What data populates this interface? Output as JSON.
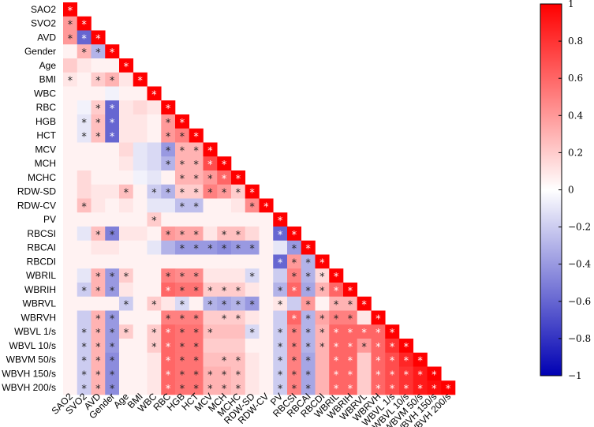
{
  "chart_data": {
    "type": "heatmap",
    "title": "",
    "variables": [
      "SAO2",
      "SVO2",
      "AVD",
      "Gender",
      "Age",
      "BMI",
      "WBC",
      "RBC",
      "HGB",
      "HCT",
      "MCV",
      "MCH",
      "MCHC",
      "RDW-SD",
      "RDW-CV",
      "PV",
      "RBCSI",
      "RBCAI",
      "RBCDI",
      "WBRIL",
      "WBRIH",
      "WBRVL",
      "WBRVH",
      "WBVL 1/s",
      "WBVL 10/s",
      "WBVM 50/s",
      "WBVH 150/s",
      "WBVH 200/s"
    ],
    "matrix_layout": "lower-triangle",
    "significance_marker": "*",
    "colorbar": {
      "range": [
        -1,
        1
      ],
      "ticks": [
        1,
        0.8,
        0.6,
        0.4,
        0.2,
        0,
        -0.2,
        -0.4,
        -0.6,
        -0.8,
        -1
      ],
      "tick_labels": [
        "1",
        "0.8",
        "0.6",
        "0.4",
        "0.2",
        "0",
        "−0.2",
        "−0.4",
        "−0.6",
        "−0.8",
        "−1"
      ],
      "color_negative": "#0000b3",
      "color_zero": "#ffffff",
      "color_positive": "#ff0000"
    },
    "rows": [
      {
        "v": [
          1
        ],
        "s": [
          1
        ]
      },
      {
        "v": [
          0.4,
          1
        ],
        "s": [
          1,
          1
        ]
      },
      {
        "v": [
          0.4,
          -0.6,
          1
        ],
        "s": [
          1,
          1,
          1
        ]
      },
      {
        "v": [
          0.05,
          0.3,
          -0.3,
          1
        ],
        "s": [
          0,
          1,
          1,
          1
        ]
      },
      {
        "v": [
          0.2,
          0.1,
          0.05,
          0.05,
          1
        ],
        "s": [
          0,
          0,
          0,
          0,
          1
        ]
      },
      {
        "v": [
          0.1,
          0.05,
          0.2,
          0.3,
          0.1,
          1
        ],
        "s": [
          1,
          0,
          1,
          1,
          0,
          1
        ]
      },
      {
        "v": [
          0.05,
          0.05,
          0.05,
          -0.05,
          0.05,
          0.05,
          1
        ],
        "s": [
          0,
          0,
          0,
          0,
          0,
          0,
          1
        ]
      },
      {
        "v": [
          0.05,
          -0.05,
          0.2,
          -0.6,
          0.1,
          0.15,
          0.1,
          1
        ],
        "s": [
          0,
          0,
          1,
          1,
          0,
          0,
          0,
          1
        ]
      },
      {
        "v": [
          0.05,
          -0.1,
          0.25,
          -0.6,
          0.1,
          0.1,
          0.05,
          0.4,
          1
        ],
        "s": [
          0,
          1,
          1,
          1,
          0,
          0,
          0,
          1,
          1
        ]
      },
      {
        "v": [
          0.05,
          -0.1,
          0.25,
          -0.6,
          0.1,
          0.1,
          0.05,
          0.4,
          0.5,
          1
        ],
        "s": [
          0,
          1,
          1,
          1,
          0,
          0,
          0,
          1,
          1,
          1
        ]
      },
      {
        "v": [
          0.05,
          0.05,
          0.05,
          0.05,
          0.15,
          -0.1,
          -0.15,
          -0.4,
          0.3,
          0.3,
          1
        ],
        "s": [
          0,
          0,
          0,
          0,
          0,
          0,
          0,
          1,
          1,
          1,
          1
        ]
      },
      {
        "v": [
          0.05,
          0.05,
          0.05,
          0.05,
          0.1,
          -0.1,
          -0.15,
          -0.3,
          0.3,
          0.3,
          0.7,
          1
        ],
        "s": [
          0,
          0,
          0,
          0,
          0,
          0,
          0,
          1,
          1,
          1,
          1,
          1
        ]
      },
      {
        "v": [
          0.05,
          0.15,
          0.05,
          0.05,
          0.05,
          -0.05,
          -0.1,
          0.05,
          0.3,
          0.3,
          0.4,
          0.6,
          1
        ],
        "s": [
          0,
          0,
          0,
          0,
          0,
          0,
          0,
          0,
          1,
          1,
          1,
          1,
          1
        ]
      },
      {
        "v": [
          0.05,
          0.15,
          0.1,
          0.1,
          0.25,
          0.05,
          -0.2,
          -0.3,
          0.2,
          0.2,
          0.5,
          0.4,
          0.2,
          1
        ],
        "s": [
          0,
          0,
          0,
          0,
          1,
          0,
          1,
          1,
          1,
          1,
          1,
          1,
          1,
          1
        ]
      },
      {
        "v": [
          0.05,
          0.25,
          0.1,
          0.05,
          0.1,
          0.05,
          -0.1,
          -0.1,
          -0.25,
          -0.25,
          0.05,
          0.05,
          0.1,
          0.45,
          1
        ],
        "s": [
          0,
          1,
          0,
          0,
          0,
          0,
          0,
          0,
          1,
          1,
          0,
          0,
          0,
          1,
          1
        ]
      },
      {
        "v": [
          0.05,
          0.05,
          0.05,
          0.05,
          0.05,
          0.05,
          0.2,
          0.05,
          0.05,
          0.05,
          0.05,
          0.05,
          0.05,
          0.05,
          0.05,
          1
        ],
        "s": [
          0,
          0,
          0,
          0,
          0,
          0,
          1,
          0,
          0,
          0,
          0,
          0,
          0,
          0,
          0,
          1
        ]
      },
      {
        "v": [
          0.05,
          -0.1,
          0.25,
          -0.5,
          0.1,
          0.1,
          0.05,
          0.4,
          0.35,
          0.35,
          0.1,
          0.25,
          0.25,
          0.15,
          0.05,
          -0.6,
          1
        ],
        "s": [
          0,
          0,
          1,
          1,
          0,
          0,
          0,
          1,
          1,
          1,
          0,
          1,
          1,
          0,
          0,
          1,
          1
        ]
      },
      {
        "v": [
          0.05,
          0.05,
          0.1,
          0.1,
          0.05,
          0.05,
          -0.1,
          -0.3,
          -0.4,
          -0.4,
          -0.4,
          -0.45,
          -0.4,
          -0.4,
          0.05,
          -0.1,
          -0.4,
          1
        ],
        "s": [
          0,
          0,
          0,
          0,
          0,
          0,
          0,
          0,
          1,
          1,
          1,
          1,
          1,
          1,
          0,
          0,
          1,
          1
        ]
      },
      {
        "v": [
          0.05,
          0.05,
          0.05,
          0.05,
          0.05,
          0.05,
          0.05,
          0.05,
          0.05,
          0.05,
          0.05,
          0.05,
          0.05,
          0.05,
          0.05,
          -0.6,
          0.4,
          -0.3,
          1
        ],
        "s": [
          0,
          0,
          0,
          0,
          0,
          0,
          0,
          0,
          0,
          0,
          0,
          0,
          0,
          0,
          0,
          1,
          1,
          1,
          1
        ]
      },
      {
        "v": [
          0.05,
          -0.1,
          0.3,
          -0.4,
          0.2,
          0.05,
          0.05,
          0.5,
          0.45,
          0.45,
          0.1,
          0.1,
          0.1,
          -0.15,
          0.05,
          -0.2,
          0.5,
          -0.3,
          0.15,
          1
        ],
        "s": [
          0,
          0,
          1,
          1,
          1,
          0,
          0,
          1,
          1,
          1,
          0,
          0,
          0,
          1,
          0,
          0,
          1,
          1,
          1,
          1
        ]
      },
      {
        "v": [
          0.05,
          -0.2,
          0.3,
          -0.4,
          0.1,
          0.05,
          0.05,
          0.6,
          0.55,
          0.55,
          0.2,
          0.2,
          0.2,
          0.1,
          0.05,
          -0.3,
          0.6,
          -0.35,
          0.3,
          0.6,
          1
        ],
        "s": [
          0,
          1,
          1,
          1,
          0,
          0,
          0,
          1,
          1,
          1,
          1,
          1,
          1,
          0,
          0,
          1,
          1,
          1,
          1,
          1,
          1
        ]
      },
      {
        "v": [
          0.05,
          0.05,
          0.05,
          0.05,
          -0.2,
          0.05,
          0.2,
          0.1,
          -0.15,
          0.05,
          -0.3,
          -0.35,
          -0.3,
          -0.4,
          0.05,
          0.1,
          -0.2,
          0.4,
          0.05,
          0.3,
          0.3,
          1
        ],
        "s": [
          0,
          0,
          0,
          0,
          1,
          0,
          1,
          0,
          1,
          0,
          1,
          1,
          1,
          1,
          0,
          1,
          0,
          1,
          0,
          1,
          1,
          1
        ]
      },
      {
        "v": [
          0.05,
          -0.2,
          0.3,
          -0.4,
          0.05,
          0.05,
          0.05,
          0.5,
          0.5,
          0.5,
          0.2,
          0.2,
          0.2,
          0.1,
          0.05,
          -0.2,
          0.6,
          -0.3,
          0.35,
          0.5,
          0.5,
          0.1,
          1
        ],
        "s": [
          0,
          0,
          1,
          1,
          0,
          0,
          0,
          1,
          1,
          1,
          0,
          1,
          1,
          0,
          0,
          0,
          1,
          1,
          1,
          1,
          1,
          0,
          1
        ]
      },
      {
        "v": [
          0.05,
          -0.2,
          0.3,
          -0.4,
          0.2,
          0.05,
          0.2,
          0.6,
          0.55,
          0.55,
          0.25,
          0.25,
          0.25,
          -0.15,
          0.05,
          -0.2,
          0.5,
          -0.3,
          0.3,
          0.6,
          0.6,
          0.6,
          0.6,
          1
        ],
        "s": [
          0,
          1,
          1,
          1,
          1,
          0,
          1,
          1,
          1,
          1,
          1,
          0,
          0,
          1,
          0,
          1,
          1,
          1,
          1,
          1,
          1,
          1,
          1,
          1
        ]
      },
      {
        "v": [
          0.05,
          -0.2,
          0.3,
          -0.4,
          0.05,
          0.05,
          0.2,
          0.6,
          0.55,
          0.55,
          0.2,
          0.2,
          0.2,
          0.05,
          0.05,
          -0.2,
          0.5,
          -0.3,
          0.3,
          0.6,
          0.6,
          0.4,
          0.6,
          0.8,
          1
        ],
        "s": [
          0,
          1,
          1,
          1,
          0,
          0,
          1,
          1,
          1,
          1,
          0,
          0,
          0,
          0,
          0,
          1,
          1,
          1,
          1,
          1,
          1,
          1,
          1,
          1,
          1
        ]
      },
      {
        "v": [
          0.05,
          -0.2,
          0.3,
          -0.45,
          0.05,
          0.05,
          0.1,
          0.6,
          0.55,
          0.55,
          0.25,
          0.25,
          0.25,
          0.1,
          0.05,
          -0.2,
          0.5,
          -0.35,
          0.3,
          0.6,
          0.6,
          0.2,
          0.6,
          0.7,
          0.85,
          1
        ],
        "s": [
          0,
          1,
          1,
          1,
          0,
          0,
          0,
          1,
          1,
          1,
          0,
          1,
          1,
          0,
          0,
          1,
          1,
          1,
          0,
          1,
          1,
          0,
          1,
          1,
          1,
          1
        ]
      },
      {
        "v": [
          0.05,
          -0.2,
          0.3,
          -0.45,
          0.05,
          0.05,
          0.1,
          0.6,
          0.55,
          0.55,
          0.3,
          0.3,
          0.25,
          0.1,
          0.05,
          -0.2,
          0.5,
          -0.35,
          0.3,
          0.6,
          0.6,
          0.2,
          0.6,
          0.7,
          0.8,
          0.9,
          1
        ],
        "s": [
          0,
          1,
          1,
          1,
          0,
          0,
          0,
          1,
          1,
          1,
          1,
          1,
          1,
          0,
          0,
          1,
          1,
          1,
          0,
          1,
          1,
          0,
          1,
          1,
          1,
          1,
          1
        ]
      },
      {
        "v": [
          0.05,
          -0.2,
          0.3,
          -0.45,
          0.05,
          0.05,
          0.1,
          0.6,
          0.55,
          0.55,
          0.3,
          0.3,
          0.25,
          0.1,
          0.05,
          -0.2,
          0.5,
          -0.35,
          0.3,
          0.6,
          0.6,
          0.2,
          0.6,
          0.7,
          0.8,
          0.9,
          0.95,
          1
        ],
        "s": [
          0,
          1,
          1,
          1,
          0,
          0,
          0,
          1,
          1,
          1,
          1,
          1,
          1,
          0,
          0,
          1,
          1,
          1,
          0,
          1,
          1,
          0,
          1,
          1,
          1,
          1,
          1,
          1
        ]
      }
    ]
  }
}
